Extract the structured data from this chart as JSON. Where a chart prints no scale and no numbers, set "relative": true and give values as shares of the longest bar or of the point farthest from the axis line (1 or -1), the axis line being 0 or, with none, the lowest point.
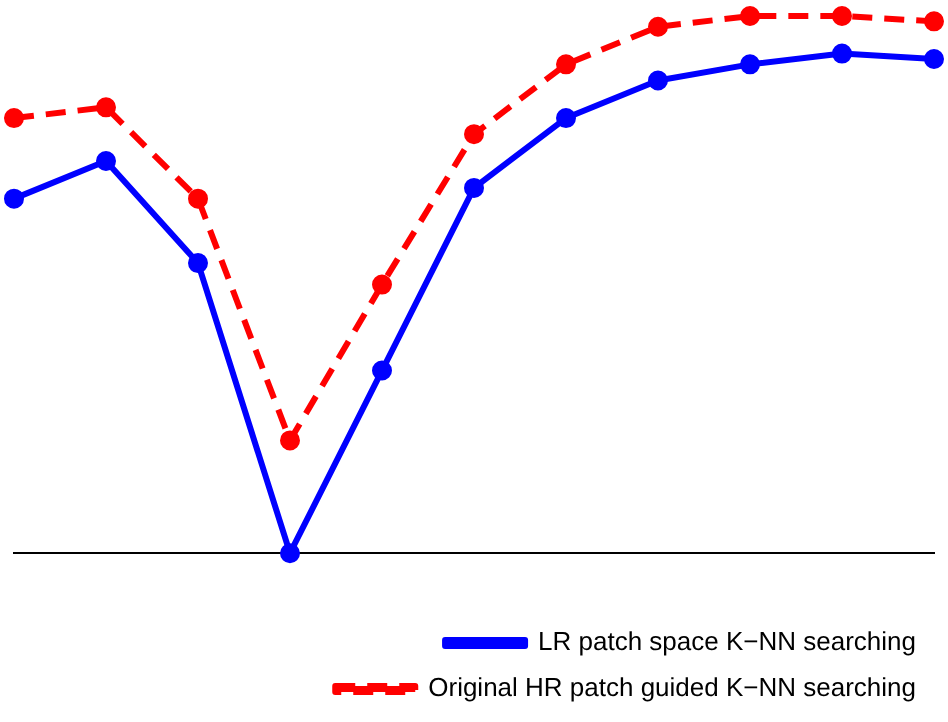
{
  "chart_data": {
    "type": "line",
    "relative": true,
    "categories": [
      null,
      null,
      null,
      null,
      null,
      null,
      null,
      null,
      null,
      null,
      null
    ],
    "marker": "circle",
    "legend": "bottom right",
    "grid": false,
    "series": [
      {
        "name": "LR patch space K−NN searching",
        "color": "#0000ff",
        "line_style": "solid",
        "values": [
          0.66,
          0.73,
          0.54,
          0,
          0.34,
          0.68,
          0.81,
          0.88,
          0.91,
          0.93,
          0.92
        ]
      },
      {
        "name": "Original HR patch guided K−NN searching",
        "color": "#ff0000",
        "line_style": "dashed",
        "values": [
          0.81,
          0.83,
          0.66,
          0.21,
          0.5,
          0.78,
          0.91,
          0.98,
          1,
          1,
          0.99
        ]
      }
    ]
  }
}
